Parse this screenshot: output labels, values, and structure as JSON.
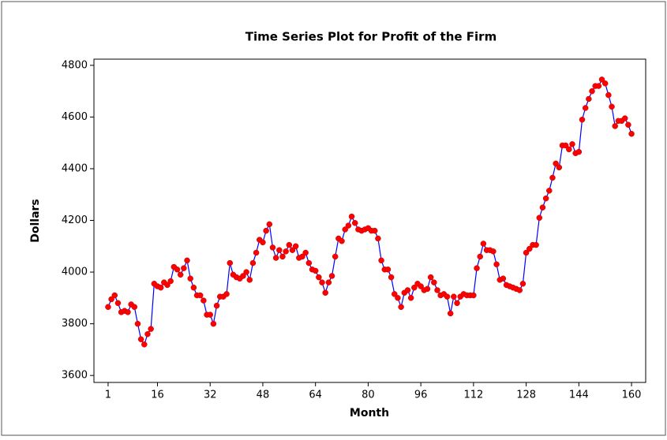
{
  "chart_data": {
    "type": "line",
    "title": "Time Series Plot for Profit of the Firm",
    "x_label": "Month",
    "y_label": "Dollars",
    "x": [
      1,
      2,
      3,
      4,
      5,
      6,
      7,
      8,
      9,
      10,
      11,
      12,
      13,
      14,
      15,
      16,
      17,
      18,
      19,
      20,
      21,
      22,
      23,
      24,
      25,
      26,
      27,
      28,
      29,
      30,
      31,
      32,
      33,
      34,
      35,
      36,
      37,
      38,
      39,
      40,
      41,
      42,
      43,
      44,
      45,
      46,
      47,
      48,
      49,
      50,
      51,
      52,
      53,
      54,
      55,
      56,
      57,
      58,
      59,
      60,
      61,
      62,
      63,
      64,
      65,
      66,
      67,
      68,
      69,
      70,
      71,
      72,
      73,
      74,
      75,
      76,
      77,
      78,
      79,
      80,
      81,
      82,
      83,
      84,
      85,
      86,
      87,
      88,
      89,
      90,
      91,
      92,
      93,
      94,
      95,
      96,
      97,
      98,
      99,
      100,
      101,
      102,
      103,
      104,
      105,
      106,
      107,
      108,
      109,
      110,
      111,
      112,
      113,
      114,
      115,
      116,
      117,
      118,
      119,
      120,
      121,
      122,
      123,
      124,
      125,
      126,
      127,
      128,
      129,
      130,
      131,
      132,
      133,
      134,
      135,
      136,
      137,
      138,
      139,
      140,
      141,
      142,
      143,
      144,
      145,
      146,
      147,
      148,
      149,
      150,
      151,
      152,
      153,
      154,
      155,
      156,
      157,
      158,
      159,
      160
    ],
    "series": [
      {
        "name": "Profit",
        "color": "#0000ff",
        "marker_color": "#ff0000",
        "values": [
          3865,
          3895,
          3910,
          3880,
          3845,
          3850,
          3845,
          3875,
          3865,
          3800,
          3740,
          3720,
          3760,
          3780,
          3955,
          3945,
          3940,
          3960,
          3950,
          3965,
          4020,
          4010,
          3990,
          4015,
          4045,
          3975,
          3940,
          3910,
          3910,
          3890,
          3835,
          3835,
          3800,
          3870,
          3905,
          3905,
          3915,
          4035,
          3990,
          3980,
          3975,
          3985,
          4000,
          3970,
          4035,
          4075,
          4125,
          4115,
          4160,
          4185,
          4095,
          4055,
          4085,
          4060,
          4080,
          4105,
          4085,
          4100,
          4055,
          4060,
          4075,
          4035,
          4010,
          4005,
          3980,
          3960,
          3920,
          3960,
          3985,
          4060,
          4130,
          4120,
          4165,
          4180,
          4215,
          4190,
          4165,
          4160,
          4165,
          4170,
          4160,
          4160,
          4130,
          4045,
          4010,
          4010,
          3980,
          3915,
          3900,
          3865,
          3920,
          3930,
          3900,
          3940,
          3955,
          3945,
          3930,
          3935,
          3980,
          3960,
          3930,
          3910,
          3915,
          3905,
          3840,
          3905,
          3880,
          3905,
          3915,
          3910,
          3910,
          3910,
          4015,
          4060,
          4110,
          4085,
          4085,
          4080,
          4030,
          3970,
          3975,
          3950,
          3945,
          3940,
          3935,
          3930,
          3955,
          4075,
          4090,
          4105,
          4105,
          4210,
          4250,
          4285,
          4315,
          4365,
          4420,
          4405,
          4490,
          4490,
          4475,
          4495,
          4460,
          4465,
          4590,
          4635,
          4670,
          4700,
          4720,
          4720,
          4745,
          4730,
          4685,
          4640,
          4565,
          4585,
          4585,
          4595,
          4570,
          4535
        ]
      }
    ],
    "xlim": [
      -3.3,
      164.3
    ],
    "xticks": [
      1,
      16,
      32,
      48,
      64,
      80,
      96,
      112,
      128,
      144,
      160
    ],
    "ylim": [
      3573,
      4824
    ],
    "yticks": [
      3600,
      3800,
      4000,
      4200,
      4400,
      4600,
      4800
    ]
  }
}
